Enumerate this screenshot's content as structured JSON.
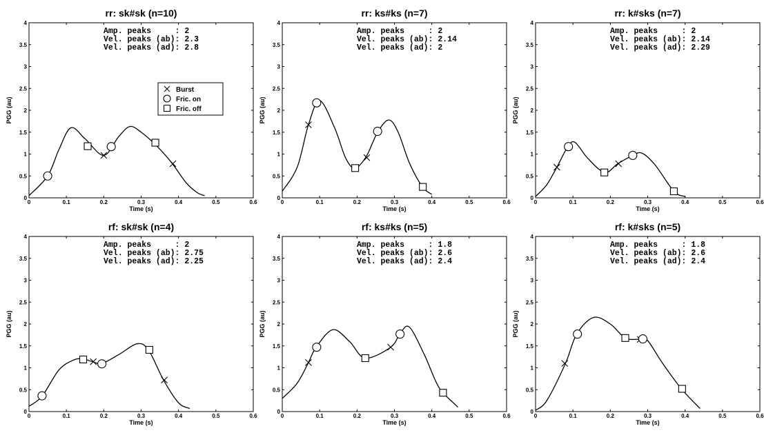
{
  "chart_data": [
    {
      "type": "line",
      "title": "rr: sk#sk (n=10)",
      "xlabel": "Time (s)",
      "ylabel": "PGG (au)",
      "xlim": [
        0,
        0.6
      ],
      "ylim": [
        0,
        4
      ],
      "x_ticks": [
        "0",
        "0.1",
        "0.2",
        "0.3",
        "0.4",
        "0.5",
        "0.6"
      ],
      "y_ticks": [
        "0",
        "0.5",
        "1",
        "1.5",
        "2",
        "2.5",
        "3",
        "3.5",
        "4"
      ],
      "annotations": [
        "Amp. peaks     : 2",
        "Vel. peaks (ab): 2.3",
        "Vel. peaks (ad): 2.8"
      ],
      "legend": {
        "placement": "center",
        "entries": [
          {
            "marker": "x",
            "label": "Burst"
          },
          {
            "marker": "circle",
            "label": "Fric. on"
          },
          {
            "marker": "square",
            "label": "Fric. off"
          }
        ]
      },
      "curve": {
        "x": [
          0,
          0.05,
          0.08,
          0.112,
          0.15,
          0.2,
          0.24,
          0.27,
          0.3,
          0.34,
          0.38,
          0.42,
          0.45,
          0.47
        ],
        "y": [
          0.05,
          0.5,
          1.1,
          1.6,
          1.35,
          0.97,
          1.4,
          1.63,
          1.5,
          1.2,
          0.82,
          0.35,
          0.12,
          0.05
        ]
      },
      "markers": {
        "burst": [
          [
            0.2,
            0.97
          ],
          [
            0.385,
            0.78
          ]
        ],
        "fric_on": [
          [
            0.05,
            0.5
          ],
          [
            0.22,
            1.17
          ]
        ],
        "fric_off": [
          [
            0.157,
            1.18
          ],
          [
            0.338,
            1.26
          ]
        ]
      }
    },
    {
      "type": "line",
      "title": "rr: ks#ks (n=7)",
      "xlabel": "Time (s)",
      "ylabel": "PGG (au)",
      "xlim": [
        0,
        0.6
      ],
      "ylim": [
        0,
        4
      ],
      "x_ticks": [
        "0",
        "0.1",
        "0.2",
        "0.3",
        "0.4",
        "0.5",
        "0.6"
      ],
      "y_ticks": [
        "0",
        "0.5",
        "1",
        "1.5",
        "2",
        "2.5",
        "3",
        "3.5",
        "4"
      ],
      "annotations": [
        "Amp. peaks     : 2",
        "Vel. peaks (ab): 2.14",
        "Vel. peaks (ad): 2"
      ],
      "curve": {
        "x": [
          0,
          0.04,
          0.07,
          0.1,
          0.14,
          0.17,
          0.195,
          0.225,
          0.255,
          0.285,
          0.31,
          0.34,
          0.375,
          0.4
        ],
        "y": [
          0.15,
          0.7,
          1.67,
          2.22,
          1.6,
          0.9,
          0.68,
          0.95,
          1.5,
          1.78,
          1.5,
          0.8,
          0.25,
          0.08
        ]
      },
      "markers": {
        "burst": [
          [
            0.07,
            1.67
          ],
          [
            0.226,
            0.92
          ]
        ],
        "fric_on": [
          [
            0.092,
            2.17
          ],
          [
            0.255,
            1.52
          ]
        ],
        "fric_off": [
          [
            0.195,
            0.68
          ],
          [
            0.376,
            0.25
          ]
        ]
      }
    },
    {
      "type": "line",
      "title": "rr: k#sks (n=7)",
      "xlabel": "Time (s)",
      "ylabel": "PGG (au)",
      "xlim": [
        0,
        0.6
      ],
      "ylim": [
        0,
        4
      ],
      "x_ticks": [
        "0",
        "0.1",
        "0.2",
        "0.3",
        "0.4",
        "0.5",
        "0.6"
      ],
      "y_ticks": [
        "0",
        "0.5",
        "1",
        "1.5",
        "2",
        "2.5",
        "3",
        "3.5",
        "4"
      ],
      "annotations": [
        "Amp. peaks     : 2",
        "Vel. peaks (ab): 2.14",
        "Vel. peaks (ad): 2.29"
      ],
      "curve": {
        "x": [
          0,
          0.03,
          0.057,
          0.085,
          0.105,
          0.14,
          0.185,
          0.22,
          0.26,
          0.285,
          0.32,
          0.37,
          0.4
        ],
        "y": [
          0.03,
          0.3,
          0.7,
          1.15,
          1.27,
          0.9,
          0.58,
          0.78,
          0.97,
          1.02,
          0.75,
          0.15,
          0.03
        ]
      },
      "markers": {
        "burst": [
          [
            0.057,
            0.7
          ],
          [
            0.222,
            0.78
          ]
        ],
        "fric_on": [
          [
            0.088,
            1.17
          ],
          [
            0.26,
            0.97
          ]
        ],
        "fric_off": [
          [
            0.184,
            0.58
          ],
          [
            0.37,
            0.15
          ]
        ]
      }
    },
    {
      "type": "line",
      "title": "rf: sk#sk (n=4)",
      "xlabel": "Time (s)",
      "ylabel": "PGG (au)",
      "xlim": [
        0,
        0.6
      ],
      "ylim": [
        0,
        4
      ],
      "x_ticks": [
        "0",
        "0.1",
        "0.2",
        "0.3",
        "0.4",
        "0.5",
        "0.6"
      ],
      "y_ticks": [
        "0",
        "0.5",
        "1",
        "1.5",
        "2",
        "2.5",
        "3",
        "3.5",
        "4"
      ],
      "annotations": [
        "Amp. peaks     : 2",
        "Vel. peaks (ab): 2.75",
        "Vel. peaks (ad): 2.25"
      ],
      "curve": {
        "x": [
          0,
          0.035,
          0.08,
          0.12,
          0.145,
          0.17,
          0.195,
          0.24,
          0.29,
          0.32,
          0.36,
          0.4,
          0.43
        ],
        "y": [
          0.12,
          0.35,
          0.95,
          1.18,
          1.2,
          1.14,
          1.1,
          1.3,
          1.55,
          1.4,
          0.72,
          0.2,
          0.07
        ]
      },
      "markers": {
        "burst": [
          [
            0.172,
            1.14
          ],
          [
            0.362,
            0.72
          ]
        ],
        "fric_on": [
          [
            0.035,
            0.36
          ],
          [
            0.195,
            1.09
          ]
        ],
        "fric_off": [
          [
            0.145,
            1.19
          ],
          [
            0.322,
            1.41
          ]
        ]
      }
    },
    {
      "type": "line",
      "title": "rf: ks#ks (n=5)",
      "xlabel": "Time (s)",
      "ylabel": "PGG (au)",
      "xlim": [
        0,
        0.6
      ],
      "ylim": [
        0,
        4
      ],
      "x_ticks": [
        "0",
        "0.1",
        "0.2",
        "0.3",
        "0.4",
        "0.5",
        "0.6"
      ],
      "y_ticks": [
        "0",
        "0.5",
        "1",
        "1.5",
        "2",
        "2.5",
        "3",
        "3.5",
        "4"
      ],
      "annotations": [
        "Amp. peaks     : 1.8",
        "Vel. peaks (ab): 2.6",
        "Vel. peaks (ad): 2.4"
      ],
      "curve": {
        "x": [
          0,
          0.04,
          0.07,
          0.09,
          0.135,
          0.18,
          0.222,
          0.29,
          0.315,
          0.34,
          0.38,
          0.41,
          0.43,
          0.47
        ],
        "y": [
          0.3,
          0.65,
          1.12,
          1.46,
          1.87,
          1.6,
          1.22,
          1.47,
          1.78,
          1.93,
          1.3,
          0.7,
          0.43,
          0.1
        ]
      },
      "markers": {
        "burst": [
          [
            0.07,
            1.12
          ],
          [
            0.29,
            1.47
          ]
        ],
        "fric_on": [
          [
            0.092,
            1.47
          ],
          [
            0.315,
            1.77
          ]
        ],
        "fric_off": [
          [
            0.222,
            1.22
          ],
          [
            0.43,
            0.43
          ]
        ]
      }
    },
    {
      "type": "line",
      "title": "rf: k#sks (n=5)",
      "xlabel": "Time (s)",
      "ylabel": "PGG (au)",
      "xlim": [
        0,
        0.6
      ],
      "ylim": [
        0,
        4
      ],
      "x_ticks": [
        "0",
        "0.1",
        "0.2",
        "0.3",
        "0.4",
        "0.5",
        "0.6"
      ],
      "y_ticks": [
        "0",
        "0.5",
        "1",
        "1.5",
        "2",
        "2.5",
        "3",
        "3.5",
        "4"
      ],
      "annotations": [
        "Amp. peaks     : 1.8",
        "Vel. peaks (ab): 2.6",
        "Vel. peaks (ad): 2.4"
      ],
      "curve": {
        "x": [
          0,
          0.03,
          0.08,
          0.11,
          0.155,
          0.2,
          0.24,
          0.28,
          0.3,
          0.34,
          0.39,
          0.44
        ],
        "y": [
          0.03,
          0.25,
          1.1,
          1.77,
          2.15,
          2.0,
          1.68,
          1.65,
          1.62,
          1.1,
          0.52,
          0.07
        ]
      },
      "markers": {
        "burst": [
          [
            0.078,
            1.1
          ],
          [
            0.28,
            1.65
          ]
        ],
        "fric_on": [
          [
            0.112,
            1.77
          ],
          [
            0.287,
            1.66
          ]
        ],
        "fric_off": [
          [
            0.24,
            1.68
          ],
          [
            0.392,
            0.52
          ]
        ]
      }
    }
  ]
}
